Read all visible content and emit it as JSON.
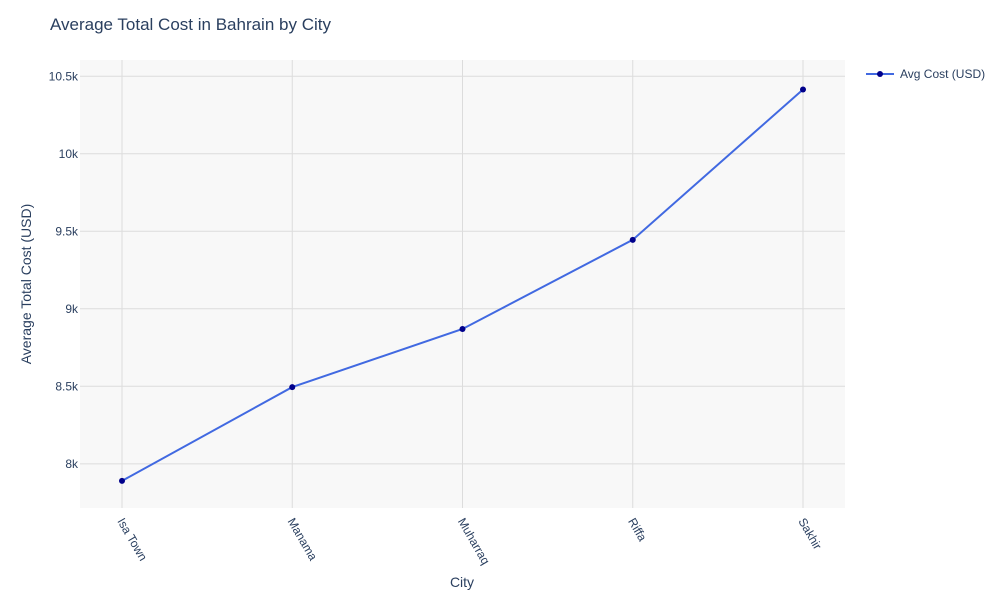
{
  "chart_data": {
    "type": "line",
    "title": "Average Total Cost in Bahrain by City",
    "xlabel": "City",
    "ylabel": "Average Total Cost (USD)",
    "categories": [
      "Isa Town",
      "Manama",
      "Muharraq",
      "Riffa",
      "Sakhir"
    ],
    "series": [
      {
        "name": "Avg Cost (USD)",
        "values": [
          7890,
          8495,
          8870,
          9445,
          10415
        ]
      }
    ],
    "ylim": [
      7715,
      10605
    ],
    "yticks": [
      8000,
      8500,
      9000,
      9500,
      10000,
      10500
    ],
    "ytick_labels": [
      "8k",
      "8.5k",
      "9k",
      "9.5k",
      "10k",
      "10.5k"
    ],
    "grid": true,
    "legend_position": "top-right",
    "colors": {
      "line": "#4169e1",
      "marker": "#00008b",
      "plot_bg": "#f8f8f8",
      "grid": "#dcdcdc",
      "text": "#2a3f5f"
    }
  }
}
